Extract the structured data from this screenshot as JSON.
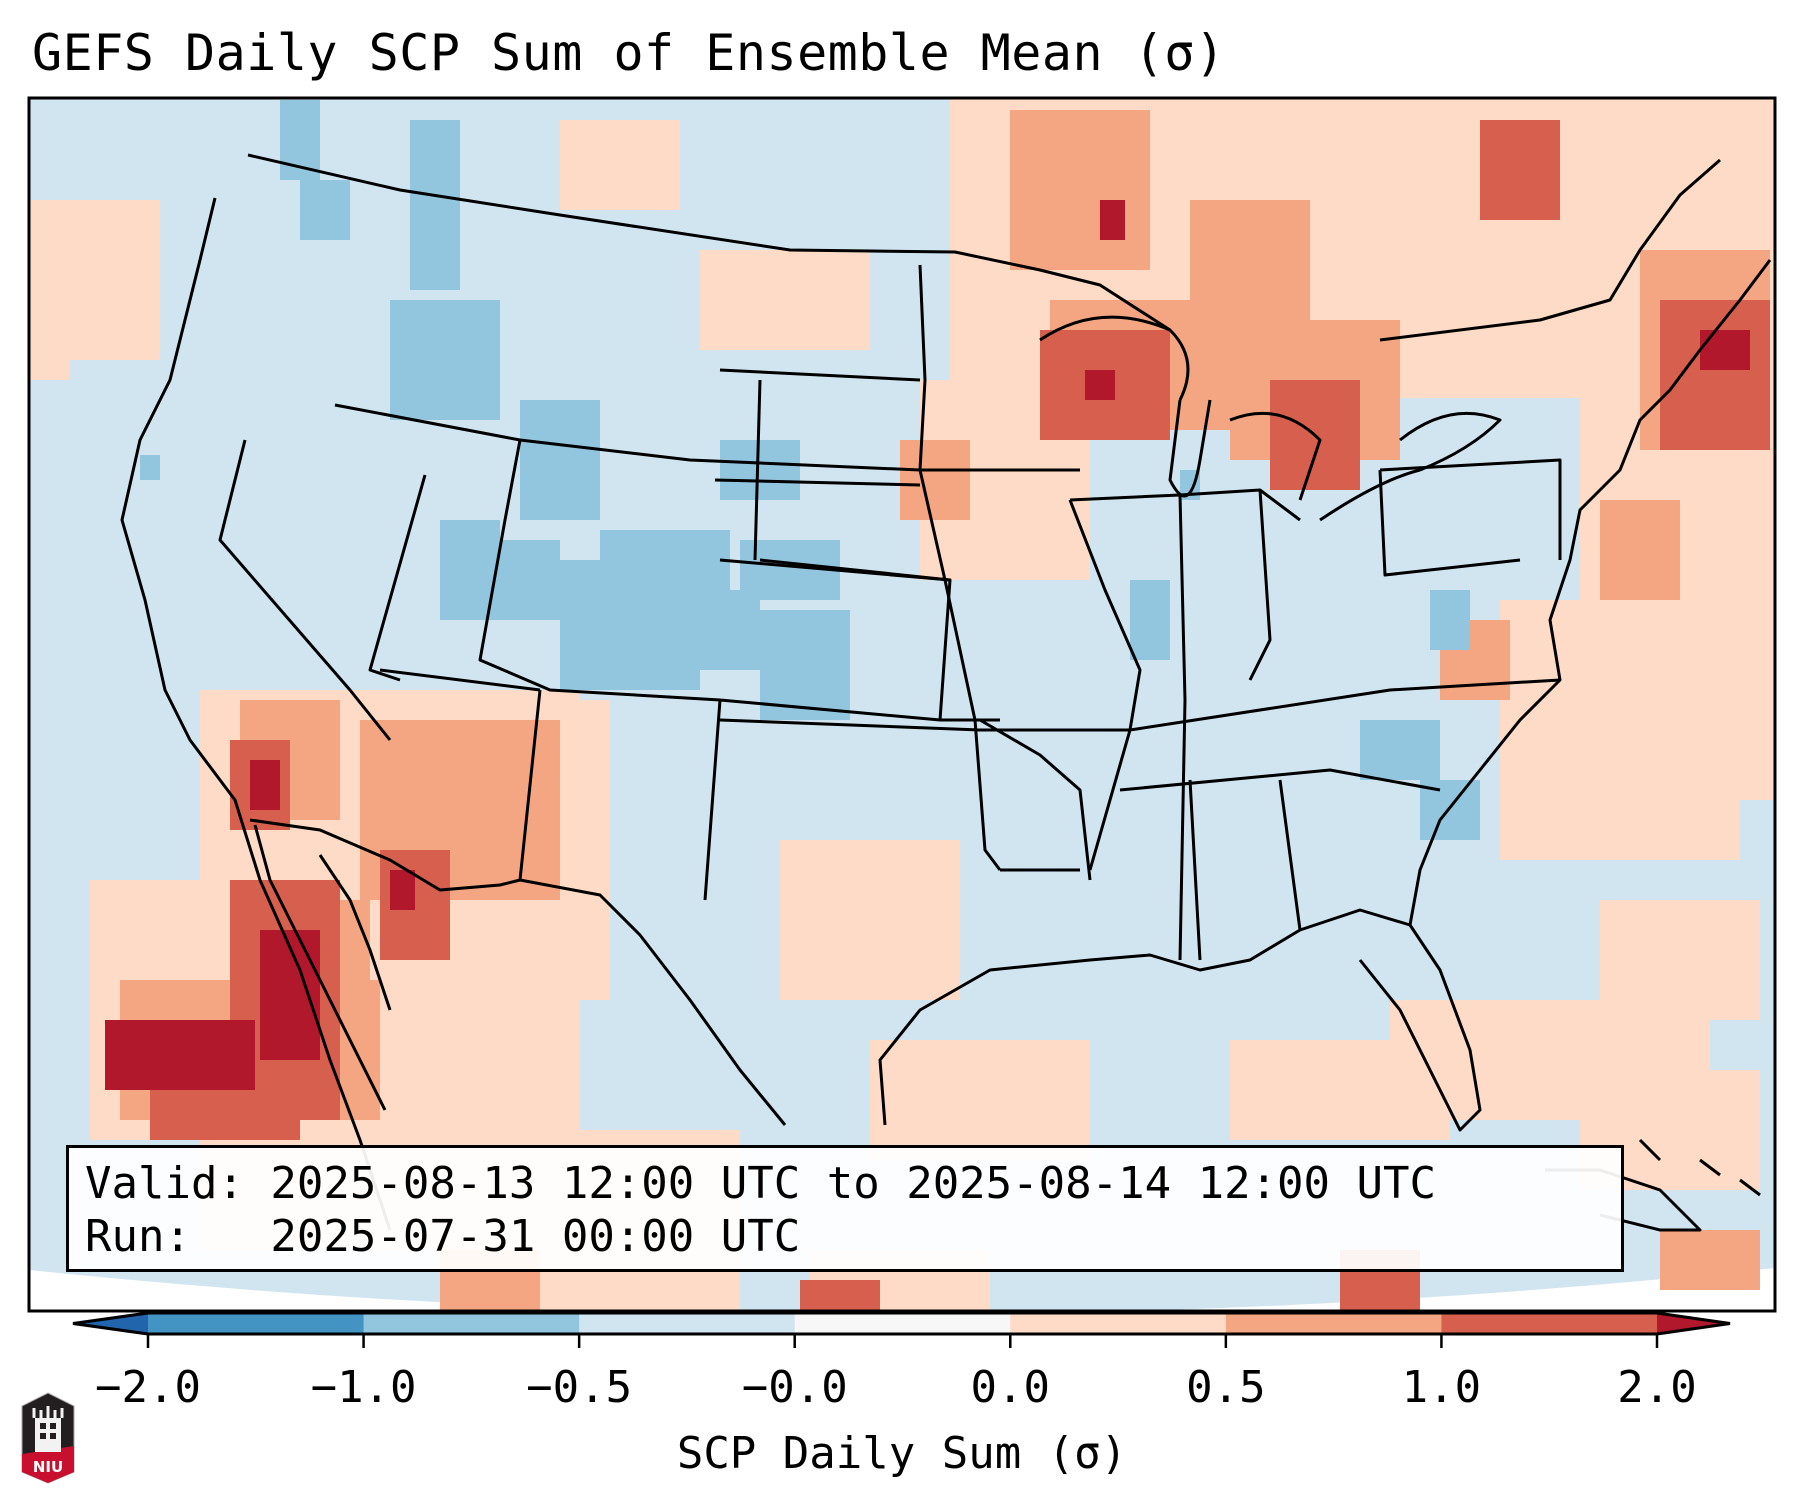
{
  "title": "GEFS Daily SCP Sum of Ensemble Mean (σ)",
  "info": {
    "valid_line": "Valid: 2025-08-13 12:00 UTC to 2025-08-14 12:00 UTC",
    "run_line": "Run:   2025-07-31 00:00 UTC"
  },
  "colorbar": {
    "label": "SCP Daily Sum (σ)",
    "ticks": [
      "−2.0",
      "−1.0",
      "−0.5",
      "−0.0",
      "0.0",
      "0.5",
      "1.0",
      "2.0"
    ],
    "bin_colors": [
      "#4393c3",
      "#92c5de",
      "#d1e5f0",
      "#f7f7f7",
      "#fddbc7",
      "#f4a582",
      "#d6604d"
    ],
    "under_color": "#2166ac",
    "over_color": "#b2182b",
    "extend": "both"
  },
  "logo": {
    "text": "NIU"
  },
  "chart_data": {
    "type": "heatmap",
    "title": "GEFS Daily SCP Sum of Ensemble Mean (σ)",
    "colorbar_label": "SCP Daily Sum (σ)",
    "levels": [
      -2.0,
      -1.0,
      -0.5,
      -0.0,
      0.0,
      0.5,
      1.0,
      2.0
    ],
    "region": "Contiguous United States",
    "features": [
      {
        "area": "Baja California / NW Mexico & offshore",
        "category": "> 2.0"
      },
      {
        "area": "Arizona / New Mexico border",
        "category": "1.0 to 2.0"
      },
      {
        "area": "Upper Midwest / Wisconsin / Upper Michigan",
        "category": "1.0 to 2.0"
      },
      {
        "area": "Northern Maine / New Brunswick",
        "category": "1.0 to 2.0"
      },
      {
        "area": "Western Ontario",
        "category": "0.5 to 2.0"
      },
      {
        "area": "Colorado / Wyoming / W Kansas",
        "category": "-1.0 to -0.5"
      },
      {
        "area": "Idaho / W Montana",
        "category": "-1.0 to -0.5"
      },
      {
        "area": "Most of CONUS elsewhere",
        "category": "-0.5 to -0.0"
      }
    ]
  }
}
